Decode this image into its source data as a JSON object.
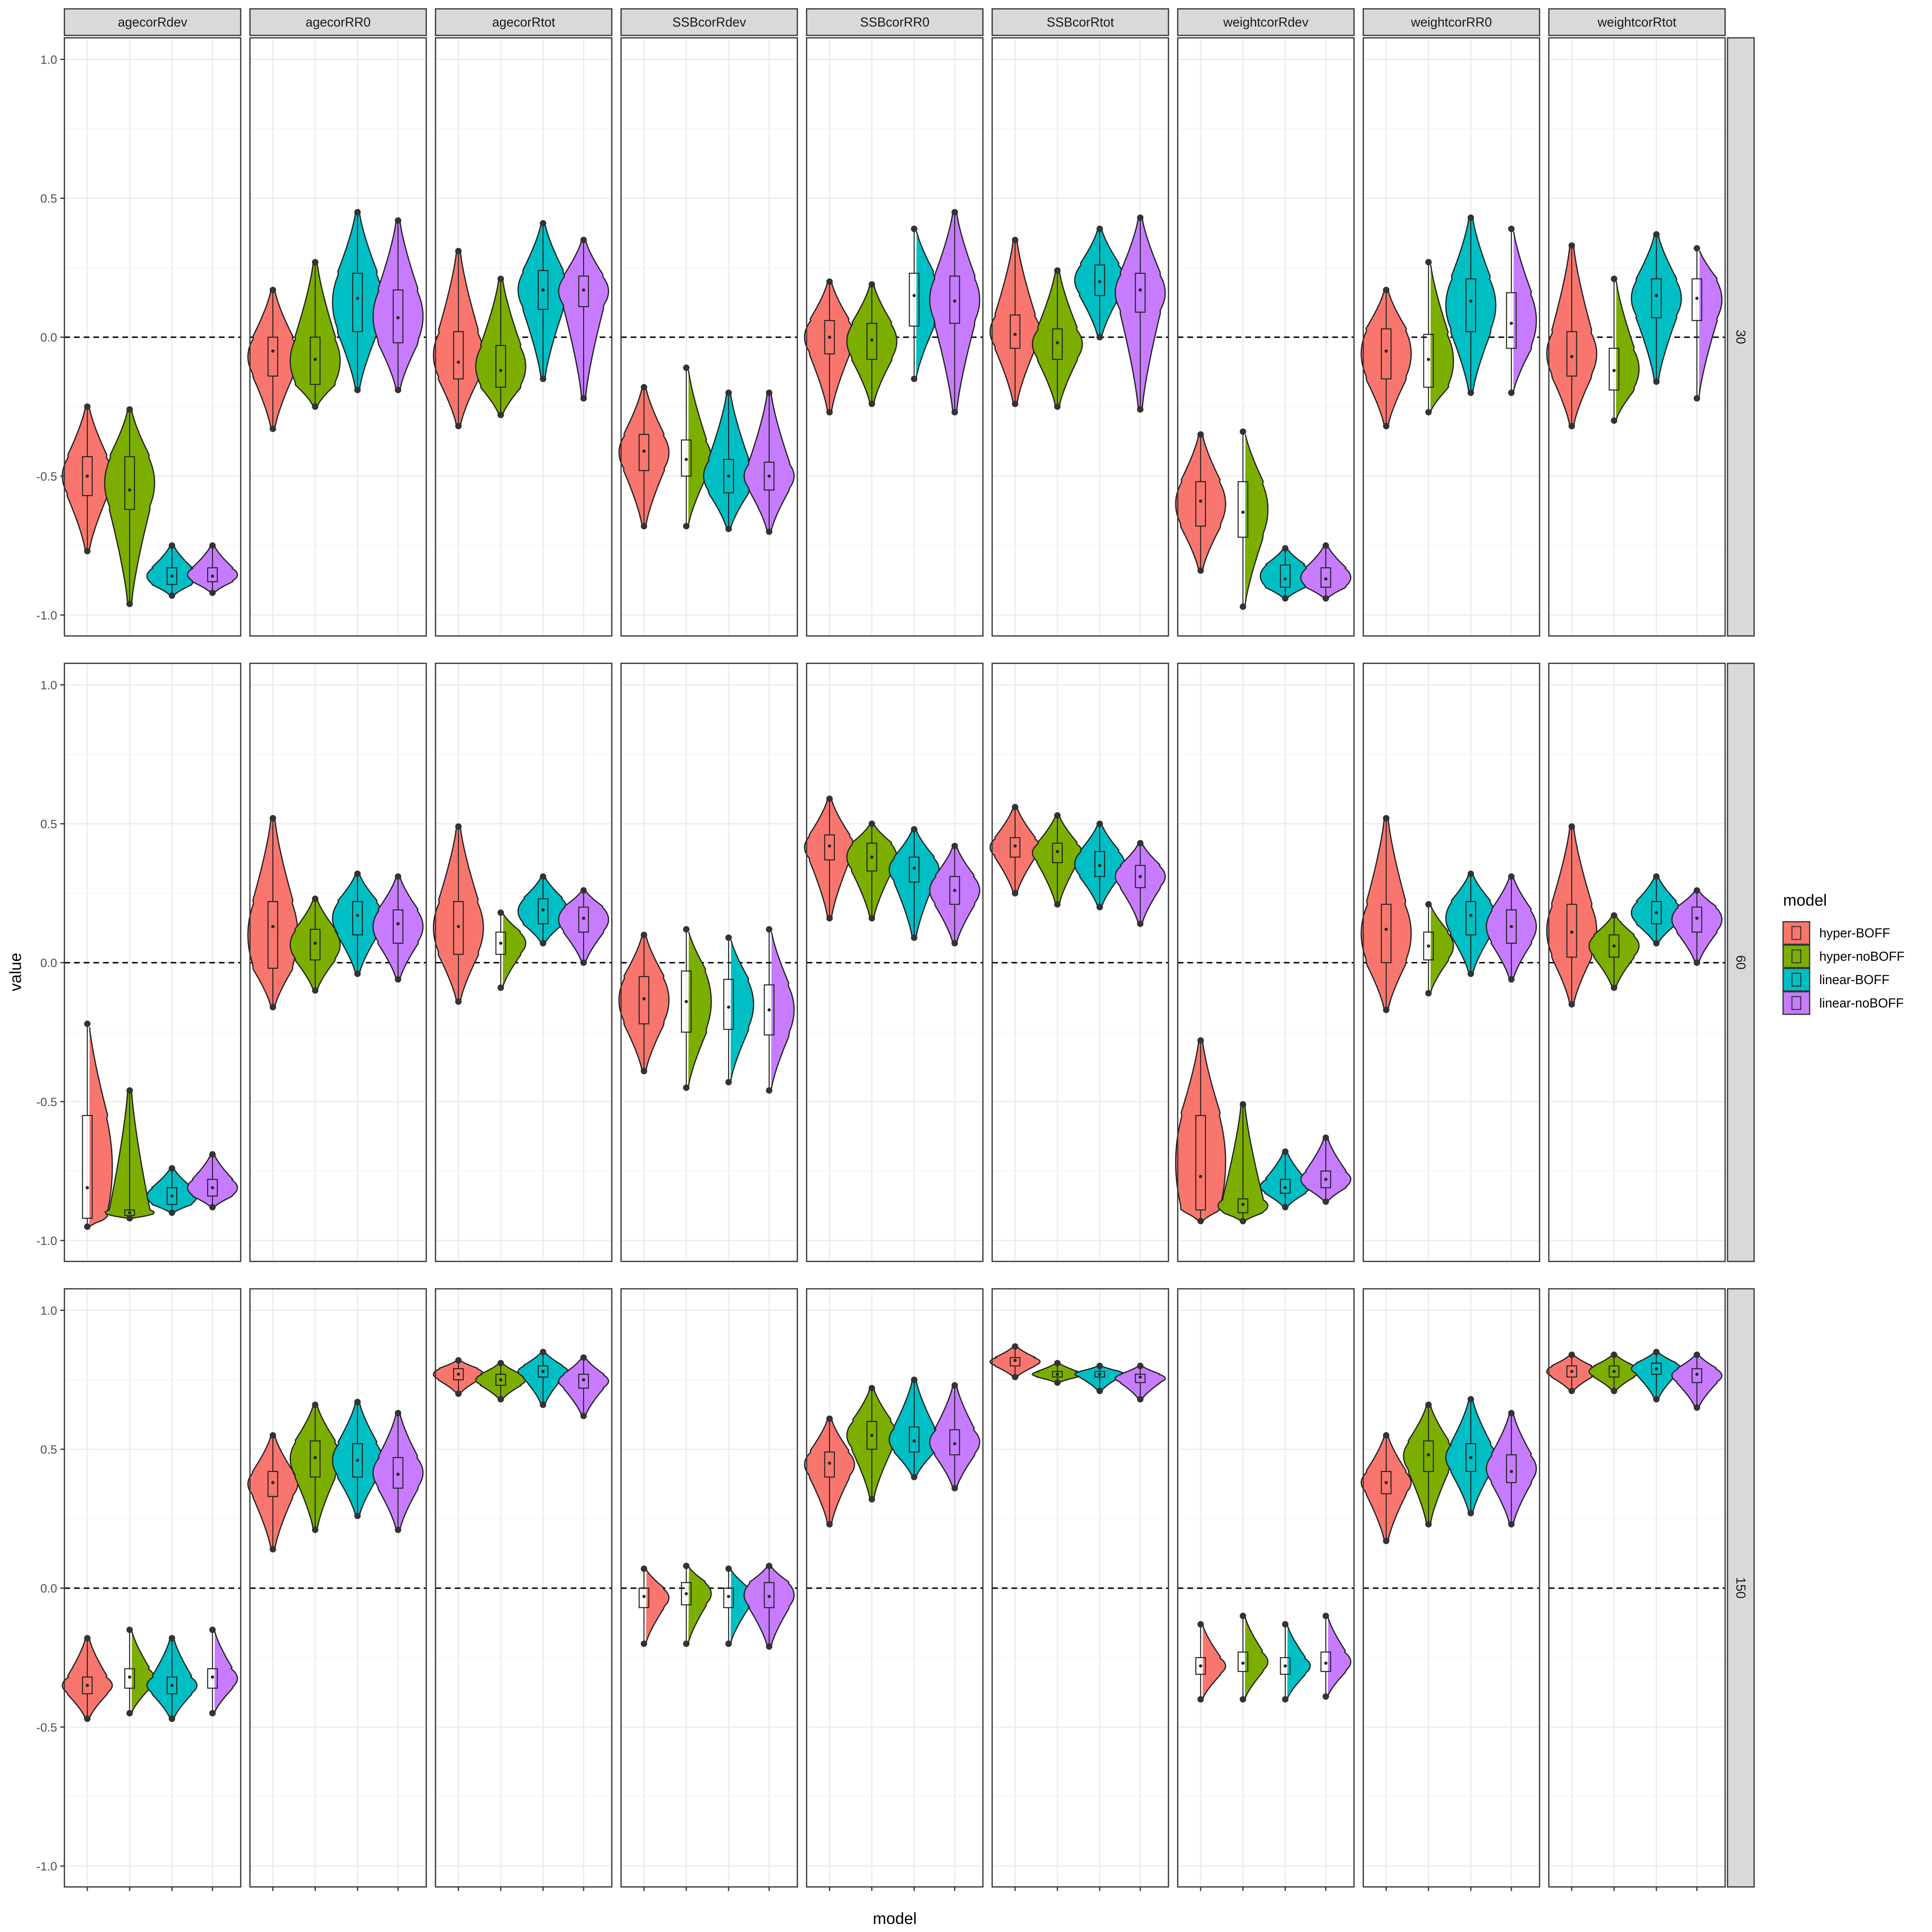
{
  "chart_data": {
    "type": "violin",
    "xlabel": "model",
    "ylabel": "value",
    "ylim": [
      -1.0,
      1.0
    ],
    "y_ticks": [
      -1.0,
      -0.5,
      0.0,
      0.5,
      1.0
    ],
    "y_tick_labels": [
      "-1.0",
      "-0.5",
      "0.0",
      "0.5",
      "1.0"
    ],
    "reference_line": 0.0,
    "grid": true,
    "legend_position": "right",
    "legend": {
      "title": "model",
      "entries": [
        {
          "name": "hyper-BOFF",
          "color": "#F8766D"
        },
        {
          "name": "hyper-noBOFF",
          "color": "#7CAE00"
        },
        {
          "name": "linear-BOFF",
          "color": "#00BFC4"
        },
        {
          "name": "linear-noBOFF",
          "color": "#C77CFF"
        }
      ]
    },
    "facet_columns": [
      "agecorRdev",
      "agecorRR0",
      "agecorRtot",
      "SSBcorRdev",
      "SSBcorRR0",
      "SSBcorRtot",
      "weightcorRdev",
      "weightcorRR0",
      "weightcorRtot"
    ],
    "facet_rows": [
      "30",
      "60",
      "150"
    ],
    "series_note": "each cell: [min, q1, median, q3, max] per model in legend order",
    "panels": {
      "30": {
        "agecorRdev": [
          [
            -0.77,
            -0.57,
            -0.5,
            -0.43,
            -0.25
          ],
          [
            -0.96,
            -0.62,
            -0.55,
            -0.43,
            -0.26
          ],
          [
            -0.93,
            -0.89,
            -0.86,
            -0.83,
            -0.75
          ],
          [
            -0.92,
            -0.88,
            -0.86,
            -0.83,
            -0.75
          ]
        ],
        "agecorRR0": [
          [
            -0.33,
            -0.14,
            -0.05,
            0.0,
            0.17
          ],
          [
            -0.25,
            -0.17,
            -0.08,
            0.0,
            0.27
          ],
          [
            -0.19,
            0.02,
            0.14,
            0.23,
            0.45
          ],
          [
            -0.19,
            -0.02,
            0.07,
            0.17,
            0.42
          ]
        ],
        "agecorRtot": [
          [
            -0.32,
            -0.15,
            -0.09,
            0.02,
            0.31
          ],
          [
            -0.28,
            -0.18,
            -0.12,
            -0.03,
            0.21
          ],
          [
            -0.15,
            0.1,
            0.17,
            0.24,
            0.41
          ],
          [
            -0.22,
            0.11,
            0.17,
            0.22,
            0.35
          ]
        ],
        "SSBcorRdev": [
          [
            -0.68,
            -0.48,
            -0.41,
            -0.35,
            -0.18
          ],
          [
            -0.68,
            -0.5,
            -0.44,
            -0.37,
            -0.11
          ],
          [
            -0.69,
            -0.56,
            -0.5,
            -0.44,
            -0.2
          ],
          [
            -0.7,
            -0.55,
            -0.5,
            -0.45,
            -0.2
          ]
        ],
        "SSBcorRdev_dummy": [],
        "SSBcorRR0": [
          [
            -0.27,
            -0.06,
            0.0,
            0.06,
            0.2
          ],
          [
            -0.24,
            -0.08,
            -0.01,
            0.05,
            0.19
          ],
          [
            -0.15,
            0.04,
            0.15,
            0.23,
            0.39
          ],
          [
            -0.27,
            0.05,
            0.13,
            0.22,
            0.45
          ]
        ],
        "SSBcorRtot": [
          [
            -0.24,
            -0.04,
            0.01,
            0.08,
            0.35
          ],
          [
            -0.25,
            -0.08,
            -0.02,
            0.03,
            0.24
          ],
          [
            0.0,
            0.15,
            0.2,
            0.26,
            0.39
          ],
          [
            -0.26,
            0.09,
            0.17,
            0.23,
            0.43
          ]
        ],
        "weightcorRdev": [
          [
            -0.84,
            -0.68,
            -0.59,
            -0.52,
            -0.35
          ],
          [
            -0.97,
            -0.72,
            -0.63,
            -0.52,
            -0.34
          ],
          [
            -0.94,
            -0.9,
            -0.87,
            -0.82,
            -0.76
          ],
          [
            -0.94,
            -0.9,
            -0.87,
            -0.83,
            -0.75
          ]
        ],
        "weightcorRR0": [
          [
            -0.32,
            -0.15,
            -0.05,
            0.03,
            0.17
          ],
          [
            -0.27,
            -0.18,
            -0.08,
            0.01,
            0.27
          ],
          [
            -0.2,
            0.02,
            0.13,
            0.21,
            0.43
          ],
          [
            -0.2,
            -0.04,
            0.05,
            0.16,
            0.39
          ]
        ],
        "weightcorRtot": [
          [
            -0.32,
            -0.14,
            -0.07,
            0.02,
            0.33
          ],
          [
            -0.3,
            -0.19,
            -0.12,
            -0.04,
            0.21
          ],
          [
            -0.16,
            0.07,
            0.15,
            0.21,
            0.37
          ],
          [
            -0.22,
            0.06,
            0.14,
            0.21,
            0.32
          ]
        ]
      },
      "60": {
        "agecorRdev": [
          [
            -0.95,
            -0.92,
            -0.81,
            -0.55,
            -0.22
          ],
          [
            -0.92,
            -0.91,
            -0.9,
            -0.89,
            -0.46
          ],
          [
            -0.9,
            -0.87,
            -0.84,
            -0.81,
            -0.74
          ],
          [
            -0.88,
            -0.84,
            -0.81,
            -0.78,
            -0.69
          ]
        ],
        "agecorRR0": [
          [
            -0.16,
            -0.02,
            0.13,
            0.22,
            0.52
          ],
          [
            -0.1,
            0.01,
            0.07,
            0.12,
            0.23
          ],
          [
            -0.04,
            0.1,
            0.17,
            0.22,
            0.32
          ],
          [
            -0.06,
            0.07,
            0.14,
            0.19,
            0.31
          ]
        ],
        "agecorRtot": [
          [
            -0.14,
            0.03,
            0.13,
            0.22,
            0.49
          ],
          [
            -0.09,
            0.03,
            0.07,
            0.11,
            0.18
          ],
          [
            0.07,
            0.14,
            0.19,
            0.23,
            0.31
          ],
          [
            0.0,
            0.11,
            0.16,
            0.2,
            0.26
          ]
        ],
        "SSBcorRdev": [
          [
            -0.39,
            -0.22,
            -0.13,
            -0.05,
            0.1
          ],
          [
            -0.45,
            -0.25,
            -0.14,
            -0.03,
            0.12
          ],
          [
            -0.43,
            -0.24,
            -0.16,
            -0.06,
            0.09
          ],
          [
            -0.46,
            -0.26,
            -0.17,
            -0.08,
            0.12
          ]
        ],
        "SSBcorRR0": [
          [
            0.16,
            0.37,
            0.42,
            0.46,
            0.59
          ],
          [
            0.16,
            0.33,
            0.38,
            0.43,
            0.5
          ],
          [
            0.09,
            0.29,
            0.34,
            0.38,
            0.48
          ],
          [
            0.07,
            0.21,
            0.26,
            0.31,
            0.42
          ]
        ],
        "SSBcorRtot": [
          [
            0.25,
            0.38,
            0.42,
            0.45,
            0.56
          ],
          [
            0.21,
            0.36,
            0.4,
            0.43,
            0.53
          ],
          [
            0.2,
            0.31,
            0.35,
            0.4,
            0.5
          ],
          [
            0.14,
            0.27,
            0.31,
            0.35,
            0.43
          ]
        ],
        "weightcorRdev": [
          [
            -0.93,
            -0.89,
            -0.77,
            -0.55,
            -0.28
          ],
          [
            -0.93,
            -0.9,
            -0.87,
            -0.85,
            -0.51
          ],
          [
            -0.88,
            -0.83,
            -0.81,
            -0.78,
            -0.68
          ],
          [
            -0.86,
            -0.81,
            -0.78,
            -0.75,
            -0.63
          ]
        ],
        "weightcorRR0": [
          [
            -0.17,
            0.0,
            0.12,
            0.21,
            0.52
          ],
          [
            -0.11,
            0.01,
            0.06,
            0.11,
            0.21
          ],
          [
            -0.04,
            0.1,
            0.17,
            0.22,
            0.32
          ],
          [
            -0.06,
            0.07,
            0.13,
            0.19,
            0.31
          ]
        ],
        "weightcorRtot": [
          [
            -0.15,
            0.02,
            0.11,
            0.21,
            0.49
          ],
          [
            -0.09,
            0.02,
            0.06,
            0.1,
            0.17
          ],
          [
            0.07,
            0.14,
            0.18,
            0.22,
            0.31
          ],
          [
            0.0,
            0.11,
            0.16,
            0.2,
            0.26
          ]
        ]
      },
      "150": {
        "agecorRdev": [
          [
            -0.47,
            -0.38,
            -0.35,
            -0.32,
            -0.18
          ],
          [
            -0.45,
            -0.36,
            -0.32,
            -0.29,
            -0.15
          ],
          [
            -0.47,
            -0.38,
            -0.35,
            -0.32,
            -0.18
          ],
          [
            -0.45,
            -0.36,
            -0.32,
            -0.29,
            -0.15
          ]
        ],
        "agecorRR0": [
          [
            0.14,
            0.33,
            0.38,
            0.42,
            0.55
          ],
          [
            0.21,
            0.4,
            0.47,
            0.53,
            0.66
          ],
          [
            0.26,
            0.4,
            0.46,
            0.52,
            0.67
          ],
          [
            0.21,
            0.36,
            0.41,
            0.47,
            0.63
          ]
        ],
        "agecorRtot": [
          [
            0.7,
            0.75,
            0.77,
            0.79,
            0.82
          ],
          [
            0.68,
            0.73,
            0.75,
            0.77,
            0.81
          ],
          [
            0.66,
            0.76,
            0.78,
            0.8,
            0.85
          ],
          [
            0.62,
            0.72,
            0.75,
            0.77,
            0.83
          ]
        ],
        "SSBcorRdev": [
          [
            -0.2,
            -0.07,
            -0.03,
            0.0,
            0.07
          ],
          [
            -0.2,
            -0.06,
            -0.02,
            0.02,
            0.08
          ],
          [
            -0.2,
            -0.07,
            -0.03,
            0.0,
            0.07
          ],
          [
            -0.21,
            -0.07,
            -0.03,
            0.02,
            0.08
          ]
        ],
        "SSBcorRR0": [
          [
            0.23,
            0.4,
            0.45,
            0.49,
            0.61
          ],
          [
            0.32,
            0.5,
            0.55,
            0.6,
            0.72
          ],
          [
            0.4,
            0.49,
            0.53,
            0.58,
            0.75
          ],
          [
            0.36,
            0.48,
            0.52,
            0.57,
            0.73
          ]
        ],
        "SSBcorRtot": [
          [
            0.76,
            0.8,
            0.82,
            0.83,
            0.87
          ],
          [
            0.74,
            0.76,
            0.77,
            0.78,
            0.81
          ],
          [
            0.71,
            0.76,
            0.77,
            0.78,
            0.8
          ],
          [
            0.68,
            0.74,
            0.76,
            0.77,
            0.8
          ]
        ],
        "weightcorRdev": [
          [
            -0.4,
            -0.31,
            -0.28,
            -0.25,
            -0.13
          ],
          [
            -0.4,
            -0.3,
            -0.27,
            -0.23,
            -0.1
          ],
          [
            -0.4,
            -0.31,
            -0.28,
            -0.25,
            -0.13
          ],
          [
            -0.39,
            -0.3,
            -0.27,
            -0.23,
            -0.1
          ]
        ],
        "weightcorRR0": [
          [
            0.17,
            0.34,
            0.38,
            0.42,
            0.55
          ],
          [
            0.23,
            0.42,
            0.48,
            0.53,
            0.66
          ],
          [
            0.27,
            0.42,
            0.47,
            0.52,
            0.68
          ],
          [
            0.23,
            0.38,
            0.42,
            0.48,
            0.63
          ]
        ],
        "weightcorRtot": [
          [
            0.71,
            0.76,
            0.78,
            0.8,
            0.84
          ],
          [
            0.71,
            0.76,
            0.78,
            0.8,
            0.84
          ],
          [
            0.68,
            0.77,
            0.79,
            0.81,
            0.85
          ],
          [
            0.65,
            0.74,
            0.77,
            0.79,
            0.84
          ]
        ]
      }
    }
  }
}
